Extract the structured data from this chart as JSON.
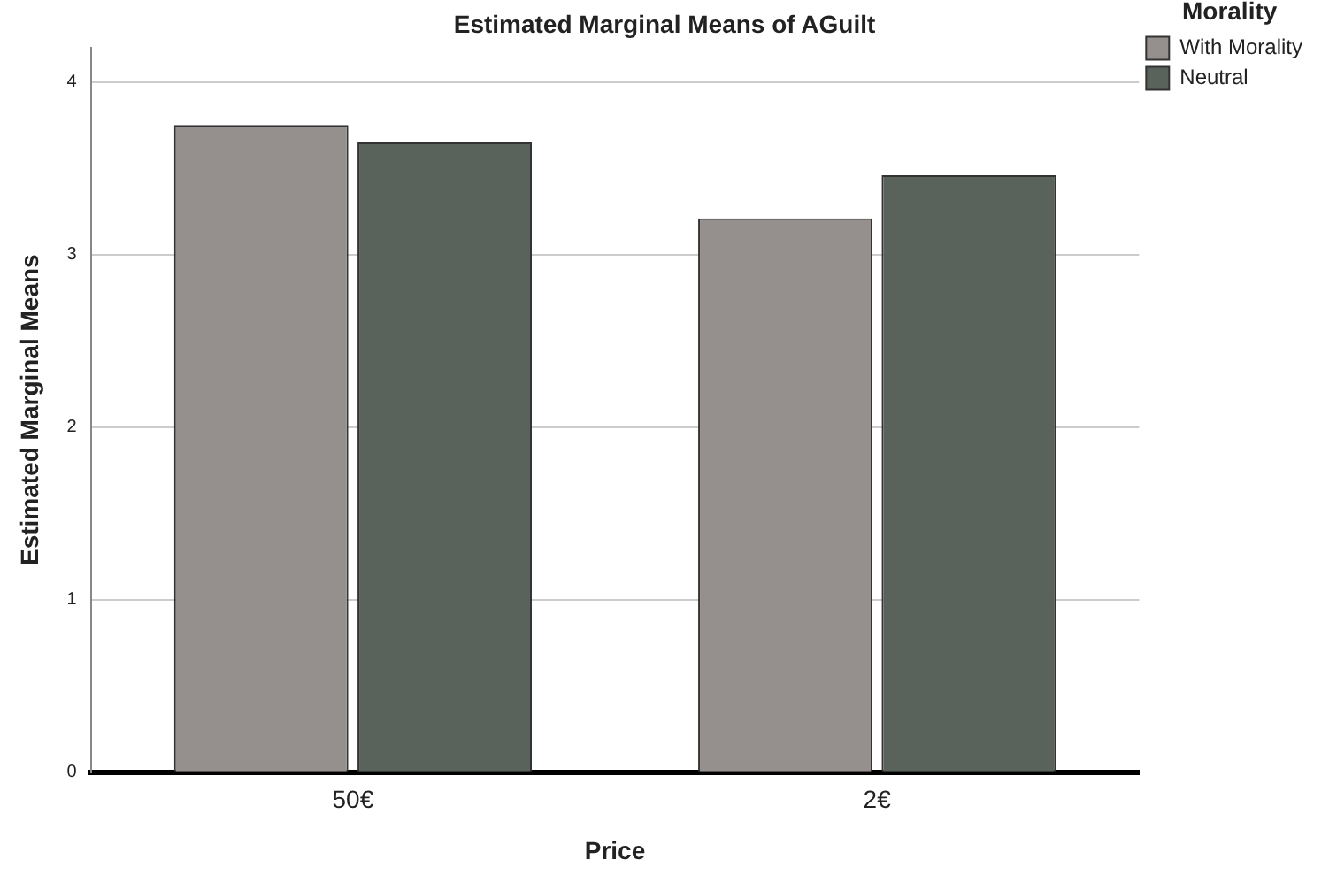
{
  "chart_data": {
    "type": "bar",
    "title": "Estimated Marginal Means of AGuilt",
    "xlabel": "Price",
    "ylabel": "Estimated Marginal Means",
    "legend_title": "Morality",
    "categories": [
      "50€",
      "2€"
    ],
    "series": [
      {
        "name": "With Morality",
        "color": "#958f8d",
        "values": [
          3.75,
          3.21
        ]
      },
      {
        "name": "Neutral",
        "color": "#5a625c",
        "values": [
          3.65,
          3.46
        ]
      }
    ],
    "ylim": [
      0,
      4.2
    ],
    "yticks": [
      0,
      1,
      2,
      3,
      4
    ],
    "grid": "y",
    "legend": "top right"
  }
}
